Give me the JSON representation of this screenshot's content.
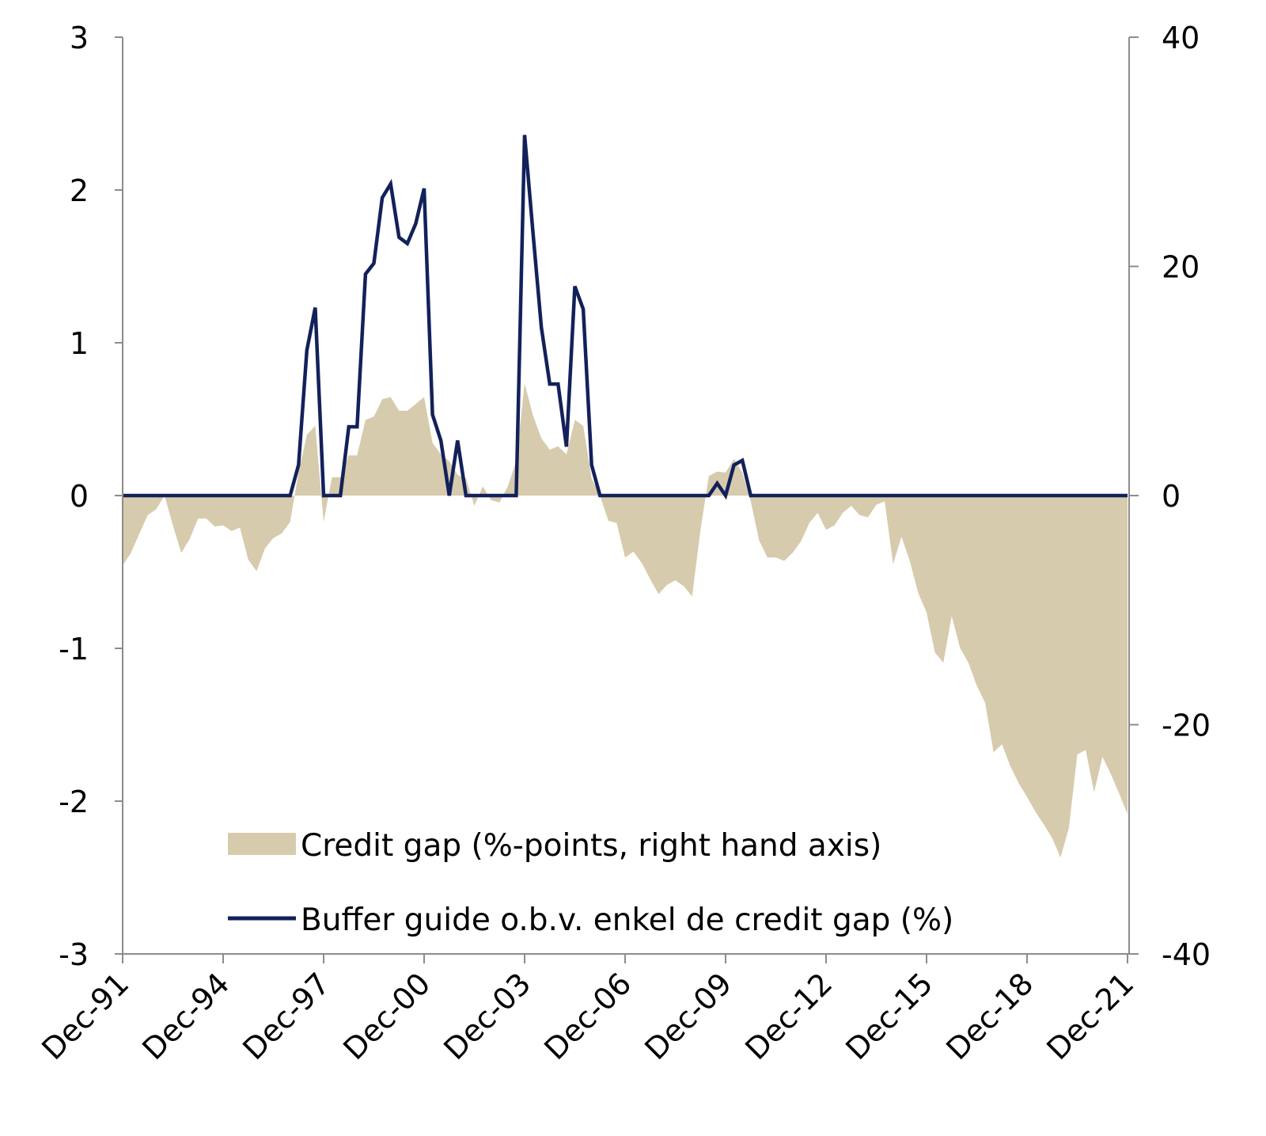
{
  "chart_data": {
    "type": "area+line",
    "title": "",
    "x_ticks": [
      "Dec-91",
      "Dec-94",
      "Dec-97",
      "Dec-00",
      "Dec-03",
      "Dec-06",
      "Dec-09",
      "Dec-12",
      "Dec-15",
      "Dec-18",
      "Dec-21"
    ],
    "x_range": [
      "1991-12",
      "2021-12"
    ],
    "y_left": {
      "range": [
        -3,
        3
      ],
      "ticks": [
        "3",
        "2",
        "1",
        "0",
        "-1",
        "-2",
        "-3"
      ],
      "tick_values": [
        3,
        2,
        1,
        0,
        -1,
        -2,
        -3
      ]
    },
    "y_right": {
      "range": [
        -40,
        40
      ],
      "ticks": [
        "40",
        "20",
        "0",
        "-20",
        "-40"
      ],
      "tick_values": [
        40,
        20,
        0,
        -20,
        -40
      ]
    },
    "grid": false,
    "legend_placement": "bottom-center",
    "x": [
      "1991-12",
      "1992-03",
      "1992-06",
      "1992-09",
      "1992-12",
      "1993-03",
      "1993-06",
      "1993-09",
      "1993-12",
      "1994-03",
      "1994-06",
      "1994-09",
      "1994-12",
      "1995-03",
      "1995-06",
      "1995-09",
      "1995-12",
      "1996-03",
      "1996-06",
      "1996-09",
      "1996-12",
      "1997-03",
      "1997-06",
      "1997-09",
      "1997-12",
      "1998-03",
      "1998-06",
      "1998-09",
      "1998-12",
      "1999-03",
      "1999-06",
      "1999-09",
      "1999-12",
      "2000-03",
      "2000-06",
      "2000-09",
      "2000-12",
      "2001-03",
      "2001-06",
      "2001-09",
      "2001-12",
      "2002-03",
      "2002-06",
      "2002-09",
      "2002-12",
      "2003-03",
      "2003-06",
      "2003-09",
      "2003-12",
      "2004-03",
      "2004-06",
      "2004-09",
      "2004-12",
      "2005-03",
      "2005-06",
      "2005-09",
      "2005-12",
      "2006-03",
      "2006-06",
      "2006-09",
      "2006-12",
      "2007-03",
      "2007-06",
      "2007-09",
      "2007-12",
      "2008-03",
      "2008-06",
      "2008-09",
      "2008-12",
      "2009-03",
      "2009-06",
      "2009-09",
      "2009-12",
      "2010-03",
      "2010-06",
      "2010-09",
      "2010-12",
      "2011-03",
      "2011-06",
      "2011-09",
      "2011-12",
      "2012-03",
      "2012-06",
      "2012-09",
      "2012-12",
      "2013-03",
      "2013-06",
      "2013-09",
      "2013-12",
      "2014-03",
      "2014-06",
      "2014-09",
      "2014-12",
      "2015-03",
      "2015-06",
      "2015-09",
      "2015-12",
      "2016-03",
      "2016-06",
      "2016-09",
      "2016-12",
      "2017-03",
      "2017-06",
      "2017-09",
      "2017-12",
      "2018-03",
      "2018-06",
      "2018-09",
      "2018-12",
      "2019-03",
      "2019-06",
      "2019-09",
      "2019-12",
      "2020-03",
      "2020-06",
      "2020-09",
      "2020-12",
      "2021-03",
      "2021-06",
      "2021-09",
      "2021-12"
    ],
    "series": [
      {
        "name": "Credit gap (%-points, right hand axis)",
        "type": "area",
        "axis": "right",
        "color": "#d7cbad",
        "values": [
          -6.1,
          -5.0,
          -3.3,
          -1.7,
          -1.2,
          0,
          -2.6,
          -5.0,
          -3.8,
          -2.0,
          -2.0,
          -2.7,
          -2.6,
          -3.1,
          -2.8,
          -5.6,
          -6.6,
          -4.6,
          -3.7,
          -3.3,
          -2.3,
          2.0,
          5.3,
          6.1,
          -2.3,
          1.6,
          1.6,
          3.5,
          3.5,
          6.6,
          6.9,
          8.4,
          8.6,
          7.4,
          7.4,
          8.0,
          8.6,
          4.6,
          3.6,
          3.0,
          1.8,
          1.5,
          -0.9,
          0.8,
          -0.4,
          -0.6,
          0.8,
          3.0,
          9.8,
          7.0,
          5.0,
          4.0,
          4.3,
          3.6,
          6.6,
          6.1,
          1.5,
          0,
          -2.2,
          -2.4,
          -5.4,
          -4.9,
          -5.9,
          -7.3,
          -8.6,
          -7.8,
          -7.4,
          -7.9,
          -8.8,
          -3.0,
          1.7,
          2.1,
          2.0,
          3.2,
          2.0,
          -0.5,
          -3.9,
          -5.4,
          -5.4,
          -5.7,
          -5.0,
          -4.0,
          -2.4,
          -1.5,
          -3.0,
          -2.6,
          -1.5,
          -0.9,
          -1.7,
          -1.9,
          -0.8,
          -0.5,
          -6.0,
          -3.6,
          -5.7,
          -8.5,
          -10.2,
          -13.7,
          -14.6,
          -10.5,
          -13.3,
          -14.6,
          -16.6,
          -18.1,
          -22.4,
          -21.7,
          -23.6,
          -25.1,
          -26.3,
          -27.6,
          -28.7,
          -29.9,
          -31.6,
          -29.0,
          -22.6,
          -22.2,
          -25.9,
          -22.8,
          -24.3,
          -26.0,
          -27.8
        ]
      },
      {
        "name": "Buffer guide o.b.v. enkel de credit gap (%)",
        "type": "line",
        "axis": "left",
        "color": "#13215a",
        "values": [
          0,
          0,
          0,
          0,
          0,
          0,
          0,
          0,
          0,
          0,
          0,
          0,
          0,
          0,
          0,
          0,
          0,
          0,
          0,
          0,
          0,
          0.2,
          0.95,
          1.23,
          0,
          0,
          0,
          0.45,
          0.45,
          1.45,
          1.52,
          1.95,
          2.04,
          1.69,
          1.65,
          1.78,
          2.01,
          0.53,
          0.36,
          0,
          0.36,
          0,
          0,
          0,
          0,
          0,
          0,
          0,
          2.36,
          1.72,
          1.1,
          0.73,
          0.73,
          0.32,
          1.37,
          1.22,
          0.2,
          0,
          0,
          0,
          0,
          0,
          0,
          0,
          0,
          0,
          0,
          0,
          0,
          0,
          0,
          0.08,
          0,
          0.2,
          0.23,
          0,
          0,
          0,
          0,
          0,
          0,
          0,
          0,
          0,
          0,
          0,
          0,
          0,
          0,
          0,
          0,
          0,
          0,
          0,
          0,
          0,
          0,
          0,
          0,
          0,
          0,
          0,
          0,
          0,
          0,
          0,
          0,
          0,
          0,
          0,
          0,
          0,
          0,
          0,
          0,
          0,
          0,
          0,
          0,
          0,
          0
        ]
      }
    ]
  }
}
